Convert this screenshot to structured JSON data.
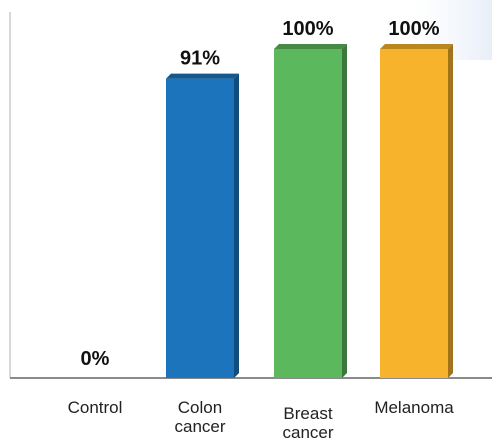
{
  "chart_data": {
    "type": "bar",
    "categories": [
      "Control",
      "Colon\ncancer",
      "Breast\ncancer",
      "Melanoma"
    ],
    "values": [
      0,
      91,
      100,
      100
    ],
    "data_labels": [
      "0%",
      "91%",
      "100%",
      "100%"
    ],
    "colors": [
      "#1c75bc",
      "#1c75bc",
      "#5cb85c",
      "#f7b32b"
    ],
    "ylim": [
      0,
      100
    ],
    "grid": false,
    "legend": "none"
  }
}
